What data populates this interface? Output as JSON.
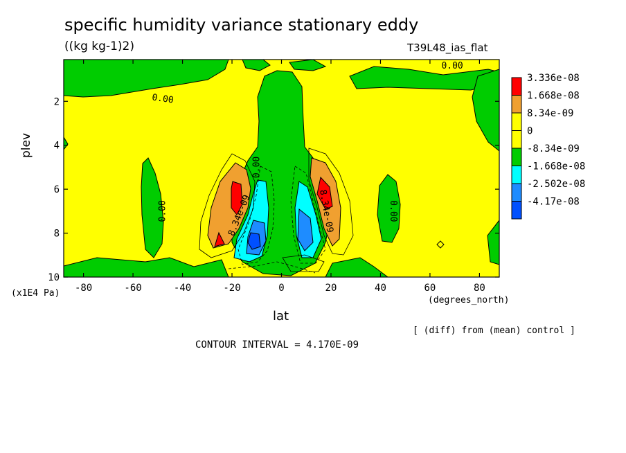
{
  "title": "specific humidity variance stationary eddy",
  "units": "((kg kg-1)2)",
  "run_name": "T39L48_ias_flat",
  "note": "[ (diff) from (mean) control ]",
  "contour_interval_text": "CONTOUR INTERVAL = 4.170E-09",
  "chart_data": {
    "type": "heatmap",
    "title": "specific humidity variance stationary eddy",
    "xlabel": "lat",
    "x_unit": "(degrees_north)",
    "ylabel": "plev",
    "y_unit": "(x1E4 Pa)",
    "xlim": [
      -88,
      88
    ],
    "ylim": [
      10,
      0.1
    ],
    "x_ticks": [
      -80,
      -60,
      -40,
      -20,
      0,
      20,
      40,
      60,
      80
    ],
    "y_ticks": [
      2,
      4,
      6,
      8,
      10
    ],
    "levels": [
      "3.336e-08",
      "1.668e-08",
      "8.34e-09",
      "0",
      "-8.34e-09",
      "-1.668e-08",
      "-2.502e-08",
      "-4.17e-08"
    ],
    "level_colors": [
      "#ff0000",
      "#f0a030",
      "#ffff00",
      "#ffff00",
      "#00cc00",
      "#00ffff",
      "#1e8cff",
      "#0050ff"
    ],
    "contour_labels": [
      {
        "text": "0.00",
        "lat": -48,
        "plev": 7.0,
        "rotate": -90
      },
      {
        "text": "0.00",
        "lat": -48,
        "plev": 1.9,
        "rotate": 8
      },
      {
        "text": "0.00",
        "lat": -10,
        "plev": 5.0,
        "rotate": -90
      },
      {
        "text": "0.00",
        "lat": 45,
        "plev": 7.0,
        "rotate": 90
      },
      {
        "text": "0.00",
        "lat": 69,
        "plev": 0.4,
        "rotate": 0
      },
      {
        "text": "8.34e-09",
        "lat": -17,
        "plev": 7.2,
        "rotate": -68
      },
      {
        "text": "8.34e-09",
        "lat": 18,
        "plev": 7.0,
        "rotate": 80
      }
    ],
    "features": [
      {
        "name": "southern positive maximum",
        "lat": -19,
        "plev": 6.6,
        "value": "3.336e-08"
      },
      {
        "name": "southern positive maximum",
        "lat": -26,
        "plev": 8.3,
        "value": "3.336e-08"
      },
      {
        "name": "northern positive maximum",
        "lat": 17,
        "plev": 6.4,
        "value": "3.336e-08"
      },
      {
        "name": "southern negative minimum",
        "lat": -11,
        "plev": 8.3,
        "value": "-4.17e-08"
      },
      {
        "name": "northern negative minimum",
        "lat": 9,
        "plev": 7.8,
        "value": "-2.502e-08"
      }
    ]
  }
}
